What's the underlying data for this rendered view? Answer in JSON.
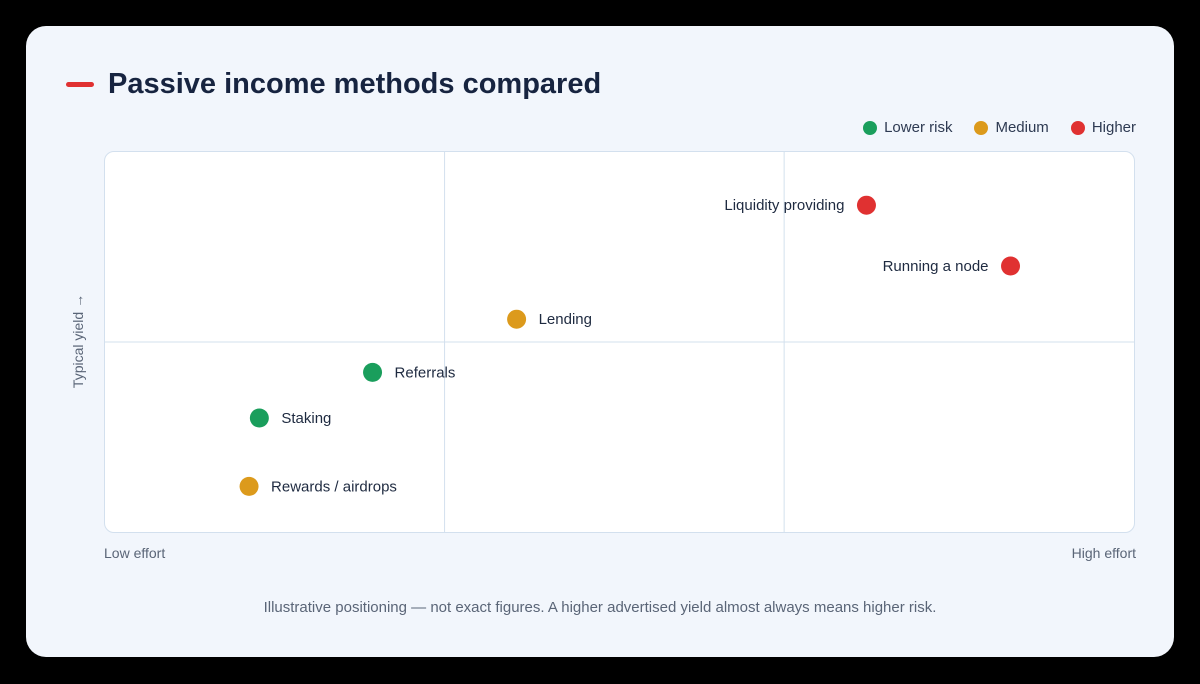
{
  "title": "Passive income methods compared",
  "accent_color": "#e03131",
  "legend": [
    {
      "label": "Lower risk",
      "color": "#1a9e5c"
    },
    {
      "label": "Medium",
      "color": "#dc9a1c"
    },
    {
      "label": "Higher",
      "color": "#e03131"
    }
  ],
  "y_axis_label": "Typical yield →",
  "x_axis_low": "Low effort",
  "x_axis_high": "High effort",
  "footnote": "Illustrative positioning — not exact figures. A higher advertised yield almost always means higher risk.",
  "chart_data": {
    "type": "scatter",
    "xlim": [
      0,
      100
    ],
    "ylim": [
      0,
      100
    ],
    "quadrant_gridlines": {
      "x": [
        33,
        66
      ],
      "y": [
        50
      ]
    },
    "points": [
      {
        "label": "Liquidity providing",
        "x": 74,
        "y": 86,
        "risk": "Higher",
        "label_side": "left"
      },
      {
        "label": "Running a node",
        "x": 88,
        "y": 70,
        "risk": "Higher",
        "label_side": "left"
      },
      {
        "label": "Lending",
        "x": 40,
        "y": 56,
        "risk": "Medium",
        "label_side": "right"
      },
      {
        "label": "Referrals",
        "x": 26,
        "y": 42,
        "risk": "Lower risk",
        "label_side": "right"
      },
      {
        "label": "Staking",
        "x": 15,
        "y": 30,
        "risk": "Lower risk",
        "label_side": "right"
      },
      {
        "label": "Rewards / airdrops",
        "x": 14,
        "y": 12,
        "risk": "Medium",
        "label_side": "right"
      }
    ]
  }
}
